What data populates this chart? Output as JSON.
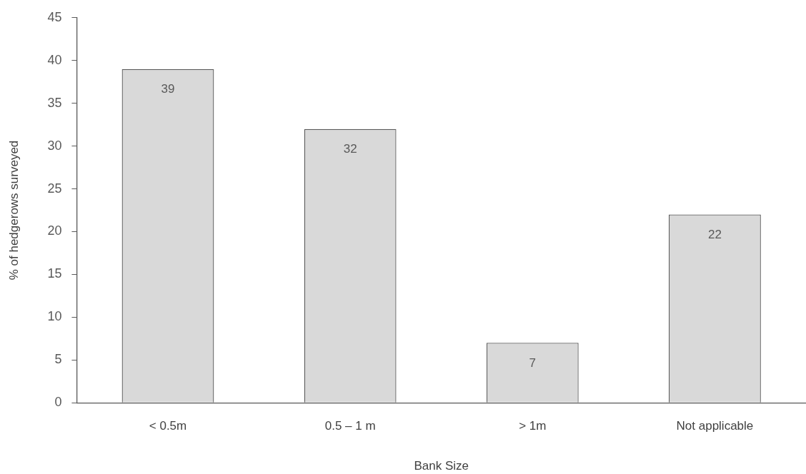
{
  "chart_data": {
    "type": "bar",
    "xlabel": "Bank Size",
    "ylabel": "% of hedgerows surveyed",
    "categories": [
      "< 0.5m",
      "0.5 – 1 m",
      "> 1m",
      "Not applicable"
    ],
    "values": [
      39,
      32,
      7,
      22
    ],
    "color": "#d9d9d9",
    "ylim": [
      0,
      45
    ],
    "yticks": [
      0,
      5,
      10,
      15,
      20,
      25,
      30,
      35,
      40,
      45
    ],
    "data_labels": true
  }
}
